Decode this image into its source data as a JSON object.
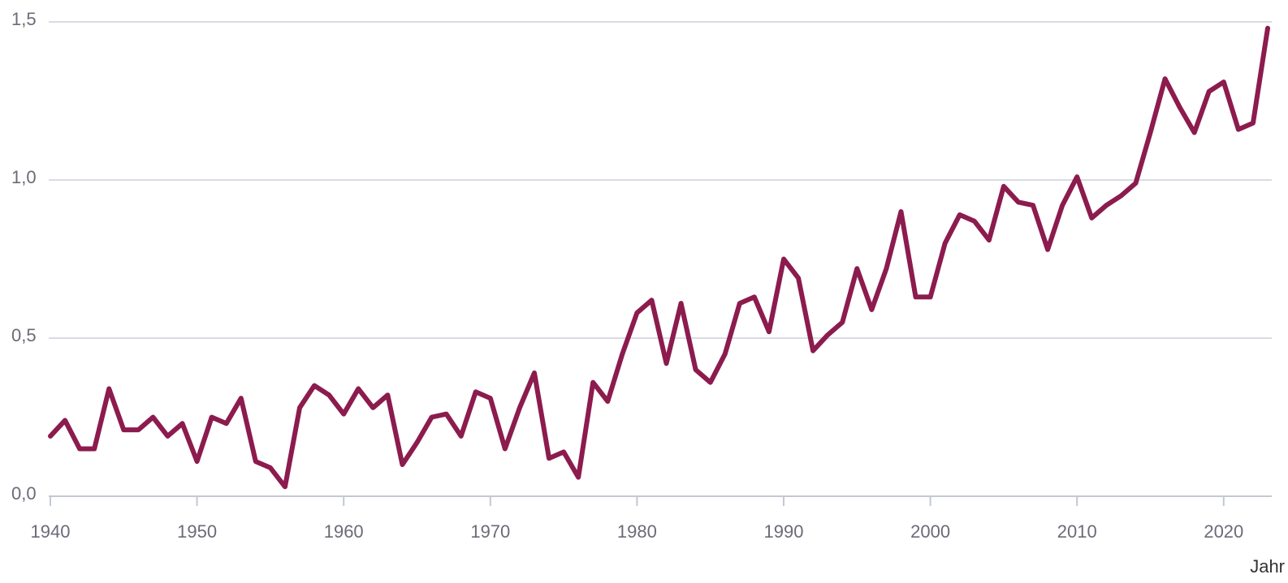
{
  "chart_data": {
    "type": "line",
    "x": [
      1940,
      1941,
      1942,
      1943,
      1944,
      1945,
      1946,
      1947,
      1948,
      1949,
      1950,
      1951,
      1952,
      1953,
      1954,
      1955,
      1956,
      1957,
      1958,
      1959,
      1960,
      1961,
      1962,
      1963,
      1964,
      1965,
      1966,
      1967,
      1968,
      1969,
      1970,
      1971,
      1972,
      1973,
      1974,
      1975,
      1976,
      1977,
      1978,
      1979,
      1980,
      1981,
      1982,
      1983,
      1984,
      1985,
      1986,
      1987,
      1988,
      1989,
      1990,
      1991,
      1992,
      1993,
      1994,
      1995,
      1996,
      1997,
      1998,
      1999,
      2000,
      2001,
      2002,
      2003,
      2004,
      2005,
      2006,
      2007,
      2008,
      2009,
      2010,
      2011,
      2012,
      2013,
      2014,
      2015,
      2016,
      2017,
      2018,
      2019,
      2020,
      2021,
      2022,
      2023
    ],
    "values": [
      0.19,
      0.24,
      0.15,
      0.15,
      0.34,
      0.21,
      0.21,
      0.25,
      0.19,
      0.23,
      0.11,
      0.25,
      0.23,
      0.31,
      0.11,
      0.09,
      0.03,
      0.28,
      0.35,
      0.32,
      0.26,
      0.34,
      0.28,
      0.32,
      0.1,
      0.17,
      0.25,
      0.26,
      0.19,
      0.33,
      0.31,
      0.15,
      0.28,
      0.39,
      0.12,
      0.14,
      0.06,
      0.36,
      0.3,
      0.45,
      0.58,
      0.62,
      0.42,
      0.61,
      0.4,
      0.36,
      0.45,
      0.61,
      0.63,
      0.52,
      0.75,
      0.69,
      0.46,
      0.51,
      0.55,
      0.72,
      0.59,
      0.72,
      0.9,
      0.63,
      0.63,
      0.8,
      0.89,
      0.87,
      0.81,
      0.98,
      0.93,
      0.92,
      0.78,
      0.92,
      1.01,
      0.88,
      0.92,
      0.95,
      0.99,
      1.15,
      1.32,
      1.23,
      1.15,
      1.28,
      1.31,
      1.16,
      1.18,
      1.48
    ],
    "color": "#8c1b4e",
    "xlabel": "Jahr",
    "xlim": [
      1940,
      2023
    ],
    "xticks": [
      1940,
      1950,
      1960,
      1970,
      1980,
      1990,
      2000,
      2010,
      2020
    ],
    "ylim": [
      0,
      1.5
    ],
    "yticks": [
      {
        "value": 0,
        "label": "0,0"
      },
      {
        "value": 0.5,
        "label": "0,5"
      },
      {
        "value": 1,
        "label": "1,0"
      },
      {
        "value": 1.5,
        "label": "1,5"
      }
    ],
    "grid": true
  }
}
